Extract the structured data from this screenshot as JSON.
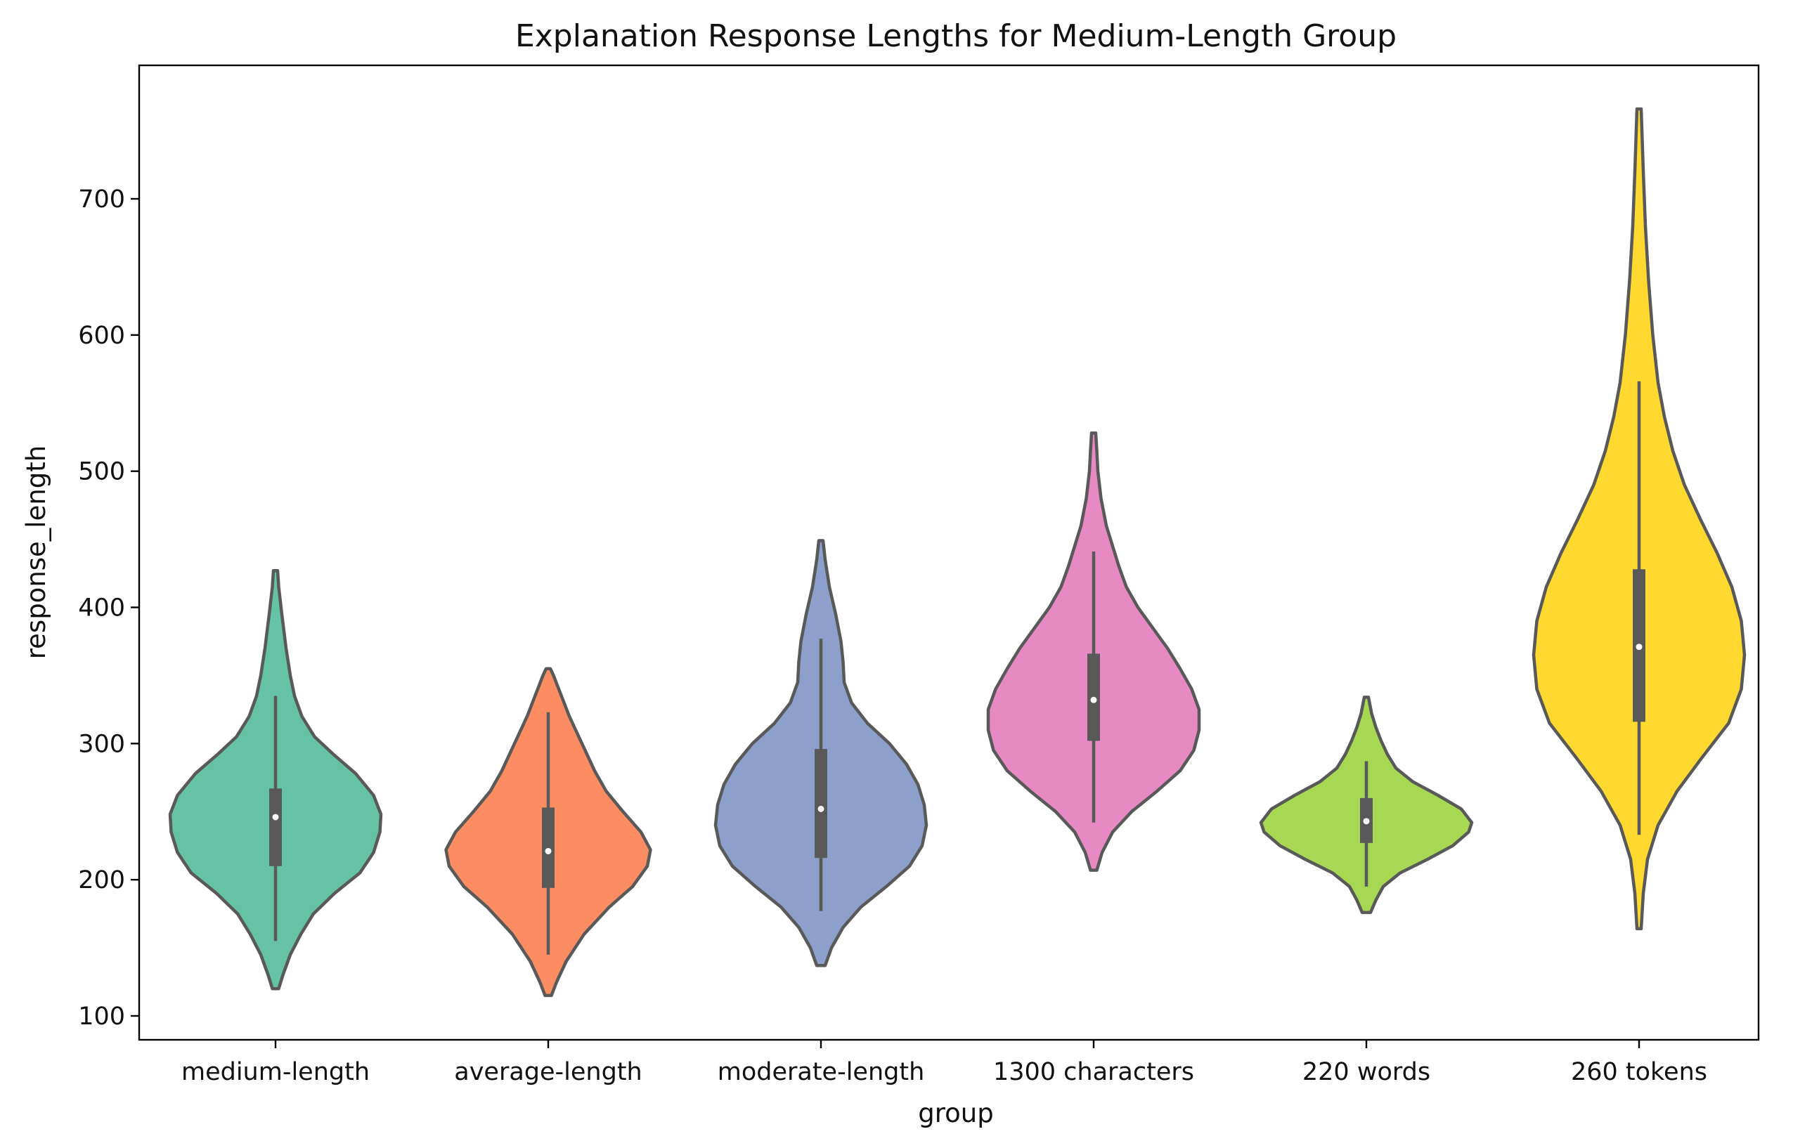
{
  "chart_data": {
    "type": "violin",
    "title": "Explanation Response Lengths for Medium-Length Group",
    "xlabel": "group",
    "ylabel": "response_length",
    "ylim": [
      80,
      795
    ],
    "yticks": [
      100,
      200,
      300,
      400,
      500,
      600,
      700
    ],
    "grid": false,
    "legend": "none",
    "categories": [
      "medium-length",
      "average-length",
      "moderate-length",
      "1300 characters",
      "220 words",
      "260 tokens"
    ],
    "colors": [
      "#66c2a5",
      "#fc8d62",
      "#8da0cb",
      "#e78ac3",
      "#a6d854",
      "#ffd92f"
    ],
    "series": [
      {
        "median": 246,
        "q1": 210,
        "q3": 267,
        "whisker_low": 155,
        "whisker_high": 335,
        "min": 120,
        "max": 427,
        "density": [
          [
            120,
            0.03
          ],
          [
            130,
            0.07
          ],
          [
            145,
            0.14
          ],
          [
            160,
            0.24
          ],
          [
            175,
            0.36
          ],
          [
            190,
            0.56
          ],
          [
            205,
            0.8
          ],
          [
            220,
            0.93
          ],
          [
            235,
            0.99
          ],
          [
            248,
            1.0
          ],
          [
            262,
            0.93
          ],
          [
            278,
            0.76
          ],
          [
            292,
            0.55
          ],
          [
            305,
            0.37
          ],
          [
            320,
            0.25
          ],
          [
            335,
            0.18
          ],
          [
            350,
            0.14
          ],
          [
            370,
            0.1
          ],
          [
            395,
            0.06
          ],
          [
            415,
            0.03
          ],
          [
            427,
            0.02
          ]
        ]
      },
      {
        "median": 221,
        "q1": 194,
        "q3": 253,
        "whisker_low": 145,
        "whisker_high": 323,
        "min": 115,
        "max": 355,
        "density": [
          [
            115,
            0.03
          ],
          [
            125,
            0.08
          ],
          [
            140,
            0.17
          ],
          [
            160,
            0.34
          ],
          [
            180,
            0.58
          ],
          [
            195,
            0.8
          ],
          [
            210,
            0.94
          ],
          [
            222,
            0.97
          ],
          [
            235,
            0.88
          ],
          [
            250,
            0.71
          ],
          [
            265,
            0.55
          ],
          [
            280,
            0.44
          ],
          [
            300,
            0.32
          ],
          [
            320,
            0.2
          ],
          [
            338,
            0.11
          ],
          [
            350,
            0.05
          ],
          [
            355,
            0.02
          ]
        ]
      },
      {
        "median": 252,
        "q1": 216,
        "q3": 296,
        "whisker_low": 177,
        "whisker_high": 377,
        "min": 137,
        "max": 449,
        "density": [
          [
            137,
            0.04
          ],
          [
            150,
            0.1
          ],
          [
            165,
            0.21
          ],
          [
            180,
            0.38
          ],
          [
            195,
            0.62
          ],
          [
            210,
            0.84
          ],
          [
            225,
            0.96
          ],
          [
            240,
            1.0
          ],
          [
            255,
            0.98
          ],
          [
            270,
            0.92
          ],
          [
            285,
            0.81
          ],
          [
            300,
            0.65
          ],
          [
            315,
            0.44
          ],
          [
            330,
            0.29
          ],
          [
            345,
            0.22
          ],
          [
            360,
            0.21
          ],
          [
            375,
            0.19
          ],
          [
            395,
            0.14
          ],
          [
            415,
            0.08
          ],
          [
            435,
            0.04
          ],
          [
            449,
            0.02
          ]
        ]
      },
      {
        "median": 332,
        "q1": 302,
        "q3": 366,
        "whisker_low": 242,
        "whisker_high": 441,
        "min": 207,
        "max": 528,
        "density": [
          [
            207,
            0.03
          ],
          [
            220,
            0.08
          ],
          [
            235,
            0.18
          ],
          [
            250,
            0.36
          ],
          [
            265,
            0.6
          ],
          [
            280,
            0.82
          ],
          [
            295,
            0.95
          ],
          [
            310,
            1.0
          ],
          [
            325,
            1.0
          ],
          [
            340,
            0.93
          ],
          [
            355,
            0.82
          ],
          [
            370,
            0.7
          ],
          [
            385,
            0.56
          ],
          [
            400,
            0.42
          ],
          [
            415,
            0.31
          ],
          [
            430,
            0.24
          ],
          [
            445,
            0.18
          ],
          [
            460,
            0.12
          ],
          [
            480,
            0.07
          ],
          [
            500,
            0.04
          ],
          [
            515,
            0.03
          ],
          [
            528,
            0.02
          ]
        ]
      },
      {
        "median": 243,
        "q1": 227,
        "q3": 260,
        "whisker_low": 195,
        "whisker_high": 287,
        "min": 176,
        "max": 334,
        "density": [
          [
            176,
            0.04
          ],
          [
            185,
            0.09
          ],
          [
            195,
            0.16
          ],
          [
            205,
            0.32
          ],
          [
            215,
            0.58
          ],
          [
            225,
            0.82
          ],
          [
            235,
            0.97
          ],
          [
            242,
            1.0
          ],
          [
            252,
            0.9
          ],
          [
            262,
            0.68
          ],
          [
            272,
            0.44
          ],
          [
            282,
            0.28
          ],
          [
            292,
            0.2
          ],
          [
            302,
            0.14
          ],
          [
            312,
            0.09
          ],
          [
            322,
            0.05
          ],
          [
            334,
            0.02
          ]
        ]
      },
      {
        "median": 371,
        "q1": 316,
        "q3": 428,
        "whisker_low": 233,
        "whisker_high": 566,
        "min": 164,
        "max": 766,
        "density": [
          [
            164,
            0.02
          ],
          [
            190,
            0.04
          ],
          [
            215,
            0.08
          ],
          [
            240,
            0.18
          ],
          [
            265,
            0.36
          ],
          [
            290,
            0.6
          ],
          [
            315,
            0.85
          ],
          [
            340,
            0.97
          ],
          [
            365,
            1.0
          ],
          [
            390,
            0.97
          ],
          [
            415,
            0.88
          ],
          [
            440,
            0.74
          ],
          [
            465,
            0.58
          ],
          [
            490,
            0.43
          ],
          [
            515,
            0.32
          ],
          [
            540,
            0.24
          ],
          [
            565,
            0.18
          ],
          [
            600,
            0.13
          ],
          [
            640,
            0.09
          ],
          [
            680,
            0.06
          ],
          [
            720,
            0.04
          ],
          [
            766,
            0.02
          ]
        ]
      }
    ]
  }
}
